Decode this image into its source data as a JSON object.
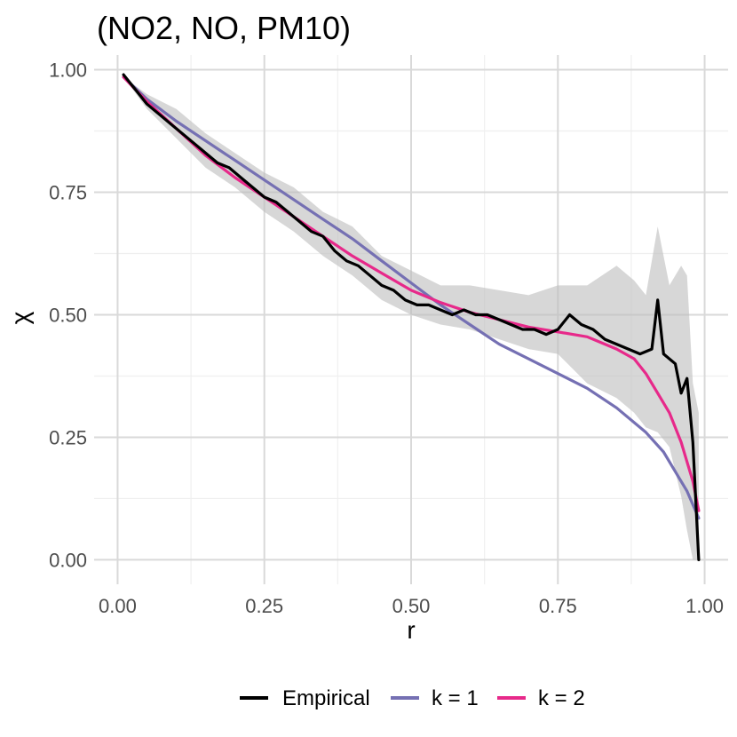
{
  "chart_data": {
    "type": "line",
    "title": "(NO2, NO, PM10)",
    "xlabel": "r",
    "ylabel": "χ",
    "xlim": [
      -0.04,
      1.04
    ],
    "ylim": [
      -0.05,
      1.03
    ],
    "x_ticks": [
      0.0,
      0.25,
      0.5,
      0.75,
      1.0
    ],
    "x_tick_labels": [
      "0.00",
      "0.25",
      "0.50",
      "0.75",
      "1.00"
    ],
    "y_ticks": [
      0.0,
      0.25,
      0.5,
      0.75,
      1.0
    ],
    "y_tick_labels": [
      "0.00",
      "0.25",
      "0.50",
      "0.75",
      "1.00"
    ],
    "grid": true,
    "legend_position": "bottom",
    "series": [
      {
        "name": "Empirical",
        "color": "#000000",
        "x": [
          0.01,
          0.03,
          0.05,
          0.07,
          0.09,
          0.11,
          0.13,
          0.15,
          0.17,
          0.19,
          0.21,
          0.23,
          0.25,
          0.27,
          0.29,
          0.31,
          0.33,
          0.35,
          0.37,
          0.39,
          0.41,
          0.43,
          0.45,
          0.47,
          0.49,
          0.51,
          0.53,
          0.55,
          0.57,
          0.59,
          0.61,
          0.63,
          0.65,
          0.67,
          0.69,
          0.71,
          0.73,
          0.75,
          0.77,
          0.79,
          0.81,
          0.83,
          0.85,
          0.87,
          0.89,
          0.91,
          0.92,
          0.93,
          0.95,
          0.96,
          0.97,
          0.98,
          0.99
        ],
        "values": [
          0.99,
          0.96,
          0.93,
          0.91,
          0.89,
          0.87,
          0.85,
          0.83,
          0.81,
          0.8,
          0.78,
          0.76,
          0.74,
          0.73,
          0.71,
          0.69,
          0.67,
          0.66,
          0.63,
          0.61,
          0.6,
          0.58,
          0.56,
          0.55,
          0.53,
          0.52,
          0.52,
          0.51,
          0.5,
          0.51,
          0.5,
          0.5,
          0.49,
          0.48,
          0.47,
          0.47,
          0.46,
          0.47,
          0.5,
          0.48,
          0.47,
          0.45,
          0.44,
          0.43,
          0.42,
          0.43,
          0.53,
          0.42,
          0.4,
          0.34,
          0.37,
          0.24,
          0.0
        ]
      },
      {
        "name": "k = 1",
        "color": "#7570b3",
        "x": [
          0.01,
          0.05,
          0.1,
          0.15,
          0.2,
          0.25,
          0.3,
          0.35,
          0.4,
          0.45,
          0.5,
          0.55,
          0.6,
          0.65,
          0.7,
          0.75,
          0.8,
          0.85,
          0.9,
          0.93,
          0.95,
          0.97,
          0.99
        ],
        "values": [
          0.985,
          0.94,
          0.895,
          0.855,
          0.815,
          0.775,
          0.735,
          0.695,
          0.655,
          0.61,
          0.565,
          0.52,
          0.48,
          0.44,
          0.41,
          0.38,
          0.35,
          0.31,
          0.26,
          0.22,
          0.18,
          0.14,
          0.085
        ]
      },
      {
        "name": "k = 2",
        "color": "#e7298a",
        "x": [
          0.01,
          0.05,
          0.1,
          0.15,
          0.2,
          0.25,
          0.3,
          0.35,
          0.4,
          0.45,
          0.5,
          0.55,
          0.6,
          0.65,
          0.7,
          0.75,
          0.8,
          0.85,
          0.88,
          0.9,
          0.92,
          0.94,
          0.96,
          0.98,
          0.99
        ],
        "values": [
          0.985,
          0.935,
          0.88,
          0.825,
          0.78,
          0.74,
          0.7,
          0.66,
          0.62,
          0.585,
          0.55,
          0.525,
          0.505,
          0.49,
          0.475,
          0.465,
          0.455,
          0.43,
          0.41,
          0.38,
          0.34,
          0.3,
          0.24,
          0.16,
          0.1
        ]
      }
    ],
    "band": {
      "x": [
        0.01,
        0.05,
        0.1,
        0.15,
        0.2,
        0.25,
        0.3,
        0.35,
        0.4,
        0.45,
        0.5,
        0.55,
        0.6,
        0.65,
        0.7,
        0.75,
        0.8,
        0.85,
        0.88,
        0.9,
        0.92,
        0.94,
        0.96,
        0.97,
        0.98,
        0.99
      ],
      "lower": [
        0.985,
        0.92,
        0.86,
        0.8,
        0.76,
        0.71,
        0.67,
        0.62,
        0.58,
        0.53,
        0.5,
        0.48,
        0.47,
        0.45,
        0.43,
        0.42,
        0.36,
        0.33,
        0.3,
        0.27,
        0.26,
        0.23,
        0.13,
        0.06,
        0.0,
        0.0
      ],
      "upper": [
        0.985,
        0.95,
        0.92,
        0.87,
        0.83,
        0.79,
        0.76,
        0.71,
        0.68,
        0.62,
        0.59,
        0.56,
        0.56,
        0.55,
        0.54,
        0.56,
        0.56,
        0.6,
        0.57,
        0.54,
        0.68,
        0.56,
        0.6,
        0.58,
        0.36,
        0.3
      ]
    }
  }
}
